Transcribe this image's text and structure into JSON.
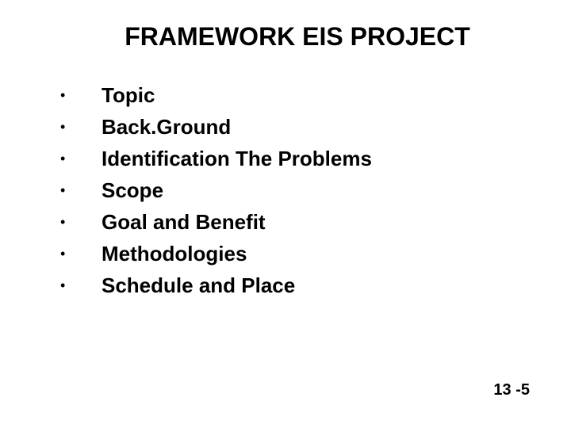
{
  "slide": {
    "title": "FRAMEWORK EIS PROJECT",
    "title_fontsize": 32,
    "title_fontweight": "bold",
    "bullets": [
      "Topic",
      "Back.Ground",
      "Identification The Problems",
      "Scope",
      "Goal and Benefit",
      "Methodologies",
      "Schedule and Place"
    ],
    "bullet_marker": "•",
    "bullet_fontsize": 26,
    "bullet_fontweight": "bold",
    "page_number": "13 -5",
    "page_number_fontsize": 20,
    "background_color": "#ffffff",
    "text_color": "#000000"
  }
}
